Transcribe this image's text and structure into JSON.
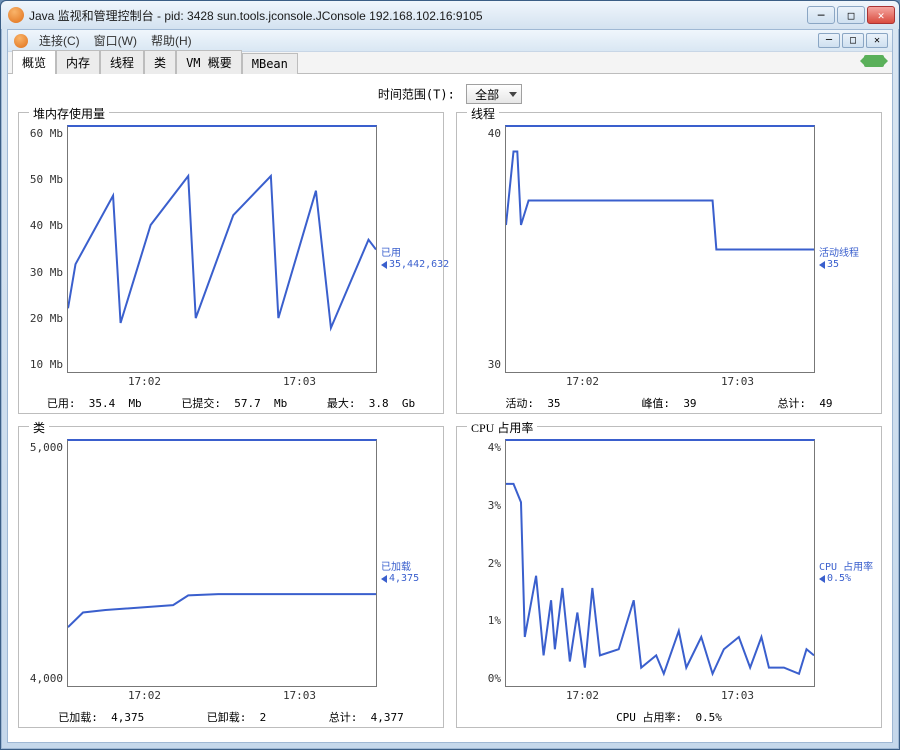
{
  "window": {
    "title": "Java 监视和管理控制台 - pid: 3428 sun.tools.jconsole.JConsole 192.168.102.16:9105"
  },
  "menu": {
    "connect": "连接(C)",
    "window": "窗口(W)",
    "help": "帮助(H)"
  },
  "tabs": {
    "overview": "概览",
    "memory": "内存",
    "threads": "线程",
    "classes": "类",
    "vm": "VM 概要",
    "mbean": "MBean"
  },
  "range": {
    "label": "时间范围(T):",
    "selected": "全部"
  },
  "colors": {
    "line": "#3a5fcd",
    "axis": "#777777",
    "label": "#3a5fcd"
  },
  "heap": {
    "title": "堆内存使用量",
    "ylim": [
      10,
      60
    ],
    "yticks": [
      "60 Mb",
      "50 Mb",
      "40 Mb",
      "30 Mb",
      "20 Mb",
      "10 Mb"
    ],
    "xticks": [
      "17:02",
      "17:03"
    ],
    "series": [
      [
        0,
        23
      ],
      [
        2,
        32
      ],
      [
        12,
        46
      ],
      [
        14,
        20
      ],
      [
        22,
        40
      ],
      [
        32,
        50
      ],
      [
        34,
        21
      ],
      [
        44,
        42
      ],
      [
        54,
        50
      ],
      [
        56,
        21
      ],
      [
        66,
        47
      ],
      [
        70,
        19
      ],
      [
        80,
        37
      ],
      [
        82,
        35
      ]
    ],
    "side_label_1": "已用",
    "side_label_2": "35,442,632",
    "footer_used_l": "已用:",
    "footer_used_v": "35.4  Mb",
    "footer_commit_l": "已提交:",
    "footer_commit_v": "57.7  Mb",
    "footer_max_l": "最大:",
    "footer_max_v": "3.8  Gb"
  },
  "threads": {
    "title": "线程",
    "ylim": [
      30,
      40
    ],
    "yticks": [
      "40",
      "30"
    ],
    "xticks": [
      "17:02",
      "17:03"
    ],
    "series": [
      [
        0,
        36
      ],
      [
        2,
        39
      ],
      [
        3,
        39
      ],
      [
        4,
        36
      ],
      [
        6,
        37
      ],
      [
        8,
        37
      ],
      [
        55,
        37
      ],
      [
        56,
        35
      ],
      [
        82,
        35
      ]
    ],
    "side_label_1": "活动线程",
    "side_label_2": "35",
    "footer_live_l": "活动:",
    "footer_live_v": "35",
    "footer_peak_l": "峰值:",
    "footer_peak_v": "39",
    "footer_total_l": "总计:",
    "footer_total_v": "49"
  },
  "classes": {
    "title": "类",
    "ylim": [
      4000,
      5000
    ],
    "yticks": [
      "5,000",
      "4,000"
    ],
    "xticks": [
      "17:02",
      "17:03"
    ],
    "series": [
      [
        0,
        4240
      ],
      [
        4,
        4300
      ],
      [
        10,
        4310
      ],
      [
        28,
        4330
      ],
      [
        32,
        4370
      ],
      [
        40,
        4375
      ],
      [
        82,
        4375
      ]
    ],
    "side_label_1": "已加载",
    "side_label_2": "4,375",
    "footer_loaded_l": "已加载:",
    "footer_loaded_v": "4,375",
    "footer_unloaded_l": "已卸载:",
    "footer_unloaded_v": "2",
    "footer_total_l": "总计:",
    "footer_total_v": "4,377"
  },
  "cpu": {
    "title": "CPU 占用率",
    "ylim": [
      0,
      4
    ],
    "yticks": [
      "4%",
      "3%",
      "2%",
      "1%",
      "0%"
    ],
    "xticks": [
      "17:02",
      "17:03"
    ],
    "series": [
      [
        0,
        3.3
      ],
      [
        2,
        3.3
      ],
      [
        4,
        3.0
      ],
      [
        5,
        0.8
      ],
      [
        8,
        1.8
      ],
      [
        10,
        0.5
      ],
      [
        12,
        1.4
      ],
      [
        13,
        0.6
      ],
      [
        15,
        1.6
      ],
      [
        17,
        0.4
      ],
      [
        19,
        1.2
      ],
      [
        21,
        0.3
      ],
      [
        23,
        1.6
      ],
      [
        25,
        0.5
      ],
      [
        30,
        0.6
      ],
      [
        34,
        1.4
      ],
      [
        36,
        0.3
      ],
      [
        40,
        0.5
      ],
      [
        42,
        0.2
      ],
      [
        46,
        0.9
      ],
      [
        48,
        0.3
      ],
      [
        52,
        0.8
      ],
      [
        55,
        0.2
      ],
      [
        58,
        0.6
      ],
      [
        62,
        0.8
      ],
      [
        65,
        0.3
      ],
      [
        68,
        0.8
      ],
      [
        70,
        0.3
      ],
      [
        74,
        0.3
      ],
      [
        78,
        0.2
      ],
      [
        80,
        0.6
      ],
      [
        82,
        0.5
      ]
    ],
    "side_label_1": "CPU 占用率",
    "side_label_2": "0.5%",
    "footer_l": "CPU 占用率:",
    "footer_v": "0.5%"
  }
}
